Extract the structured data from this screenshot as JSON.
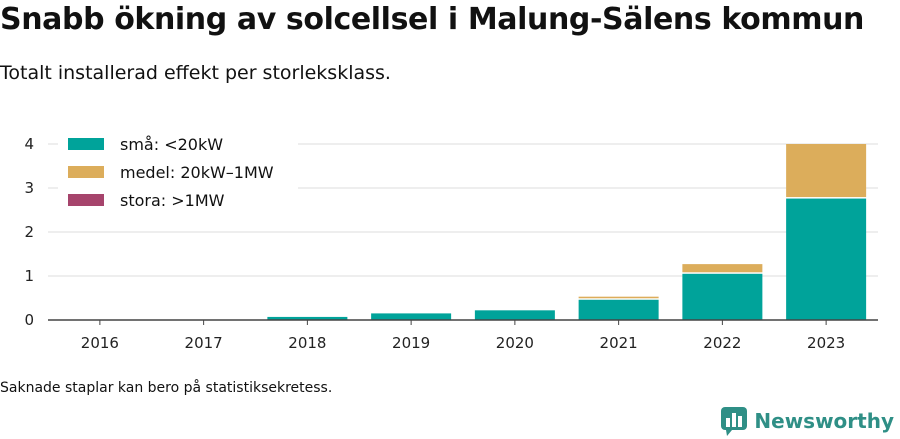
{
  "title": "Snabb ökning av solcellsel i Malung-Sälens kommun",
  "subtitle": "Totalt installerad effekt per storleksklass.",
  "footnote": "Saknade staplar kan bero på statistiksekretess.",
  "brand": {
    "name": "Newsworthy",
    "color": "#2f8f86"
  },
  "chart_data": {
    "type": "bar",
    "stacked": true,
    "categories": [
      "2016",
      "2017",
      "2018",
      "2019",
      "2020",
      "2021",
      "2022",
      "2023"
    ],
    "series": [
      {
        "name": "små: <20kW",
        "color": "#00a39a",
        "values": [
          0,
          0,
          0.07,
          0.15,
          0.22,
          0.46,
          1.05,
          2.76
        ]
      },
      {
        "name": "medel: 20kW–1MW",
        "color": "#dcad5b",
        "values": [
          0,
          0,
          0,
          0,
          0,
          0.07,
          0.22,
          1.24
        ]
      },
      {
        "name": "stora: >1MW",
        "color": "#a6446c",
        "values": [
          0,
          0,
          0,
          0,
          0,
          0,
          0,
          0
        ]
      }
    ],
    "ylim": [
      0,
      4
    ],
    "yticks": [
      "0",
      "1",
      "2",
      "3",
      "4"
    ],
    "grid": true,
    "legend": "top-left",
    "xlabel": "",
    "ylabel": ""
  }
}
